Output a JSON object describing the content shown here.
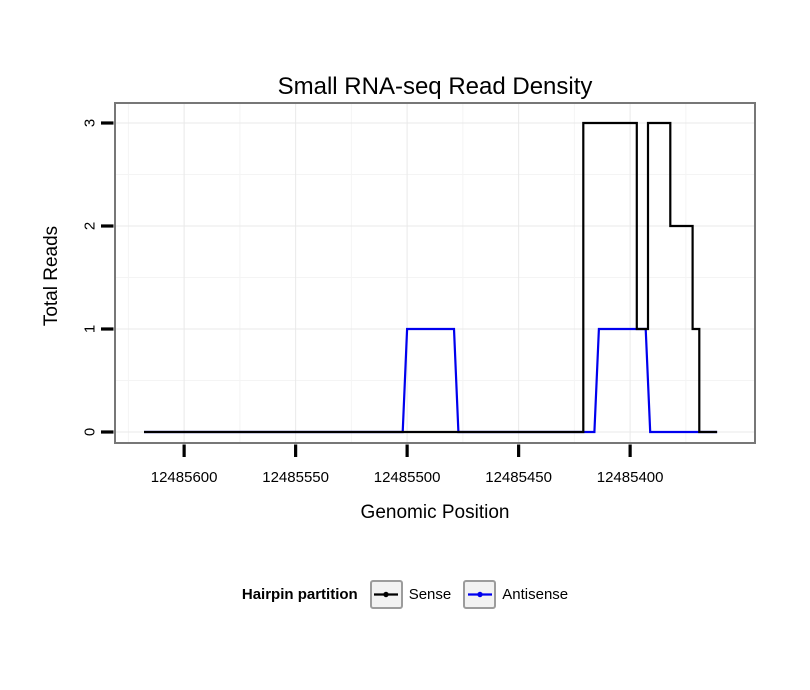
{
  "chart_data": {
    "type": "line",
    "title": "Small RNA-seq Read Density",
    "xlabel": "Genomic Position",
    "ylabel": "Total Reads",
    "x_reversed": true,
    "xlim": [
      12485631,
      12485344
    ],
    "ylim": [
      0,
      3
    ],
    "x_ticks": [
      12485600,
      12485550,
      12485500,
      12485450,
      12485400
    ],
    "y_ticks": [
      0,
      1,
      2,
      3
    ],
    "grid": {
      "major": true,
      "minor": true
    },
    "legend": {
      "title": "Hairpin partition",
      "position": "bottom",
      "entries": [
        {
          "label": "Sense",
          "color": "#000000"
        },
        {
          "label": "Antisense",
          "color": "#0000EE"
        }
      ]
    },
    "series": [
      {
        "name": "Sense",
        "color": "#000000",
        "step_points": [
          [
            12485618,
            0
          ],
          [
            12485421,
            0
          ],
          [
            12485421,
            3
          ],
          [
            12485397,
            3
          ],
          [
            12485397,
            1
          ],
          [
            12485392,
            1
          ],
          [
            12485392,
            3
          ],
          [
            12485382,
            3
          ],
          [
            12485382,
            2
          ],
          [
            12485372,
            2
          ],
          [
            12485372,
            1
          ],
          [
            12485369,
            1
          ],
          [
            12485369,
            0
          ],
          [
            12485361,
            0
          ]
        ]
      },
      {
        "name": "Antisense",
        "color": "#0000EE",
        "step_points": [
          [
            12485618,
            0
          ],
          [
            12485502,
            0
          ],
          [
            12485500,
            1
          ],
          [
            12485479,
            1
          ],
          [
            12485477,
            0
          ],
          [
            12485416,
            0
          ],
          [
            12485414,
            1
          ],
          [
            12485393,
            1
          ],
          [
            12485391,
            0
          ],
          [
            12485361,
            0
          ]
        ]
      }
    ]
  }
}
